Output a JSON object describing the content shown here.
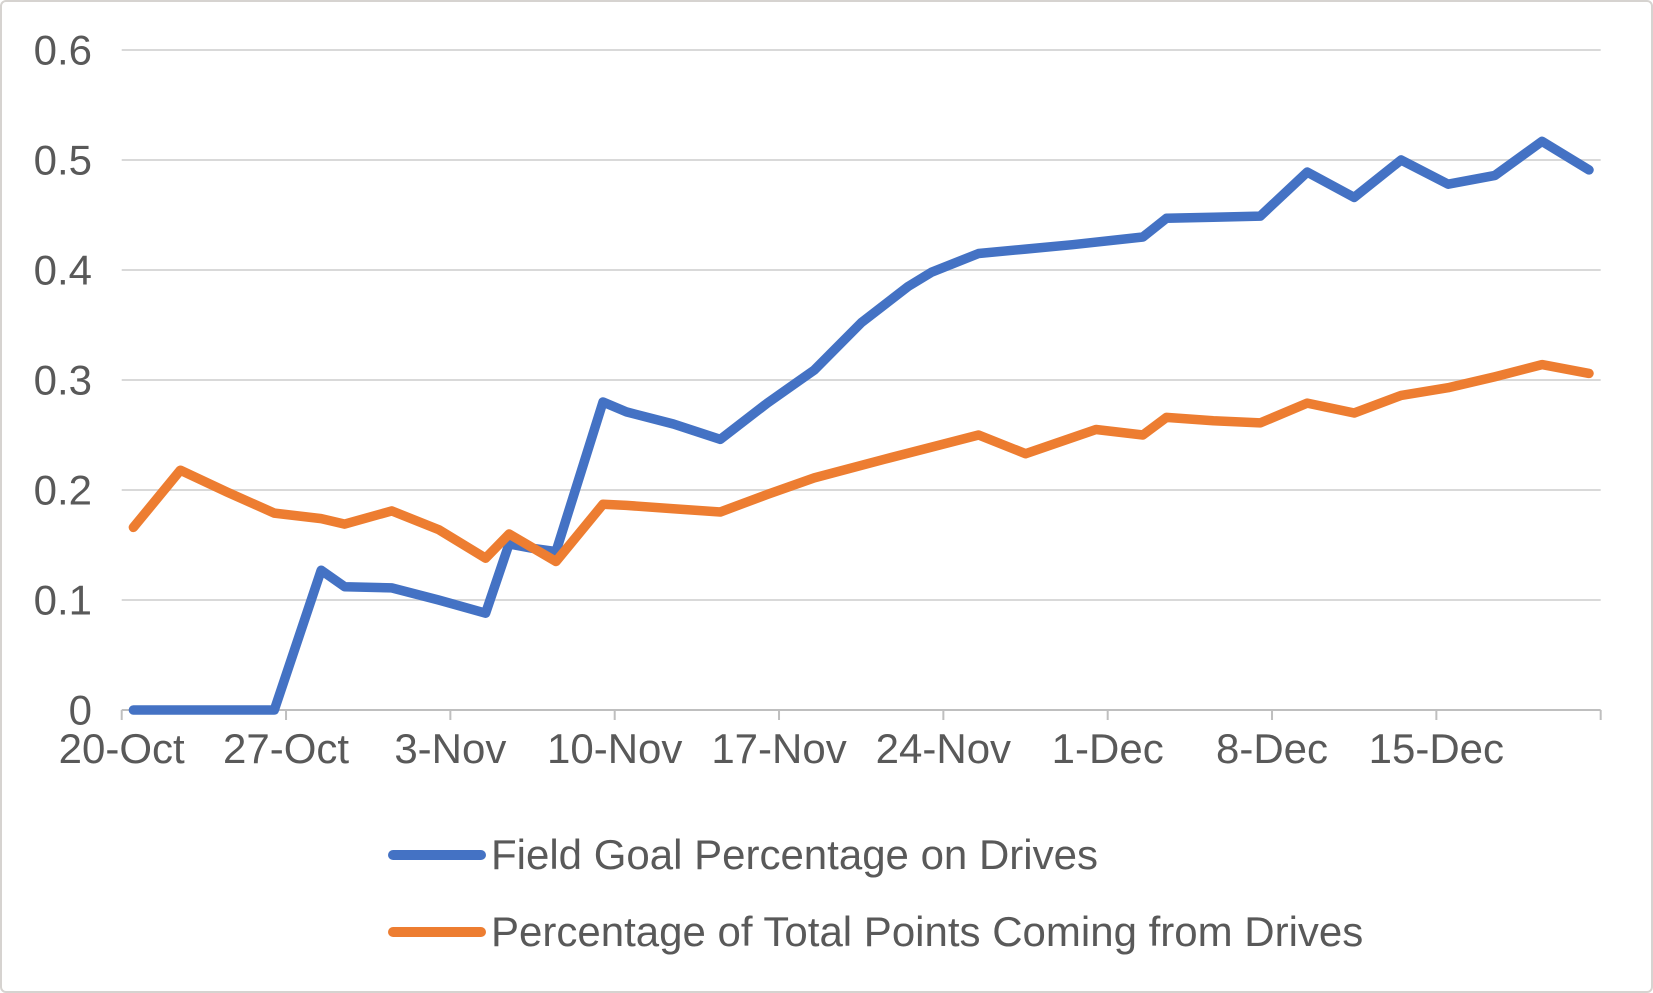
{
  "chart_data": {
    "type": "line",
    "title": "",
    "x_axis": {
      "unit": "days since 20-Oct (date axis)",
      "tick_labels": [
        "20-Oct",
        "27-Oct",
        "3-Nov",
        "10-Nov",
        "17-Nov",
        "24-Nov",
        "1-Dec",
        "8-Dec",
        "15-Dec"
      ],
      "tick_day_positions": [
        0,
        7,
        14,
        21,
        28,
        35,
        42,
        49,
        56
      ],
      "unlabeled_end_tick_day": 63,
      "range_days": [
        0,
        63
      ]
    },
    "y_axis": {
      "range": [
        0,
        0.6
      ],
      "gridlines": true,
      "ticks": [
        {
          "label": "0",
          "value": 0
        },
        {
          "label": "0.1",
          "value": 0.1
        },
        {
          "label": "0.2",
          "value": 0.2
        },
        {
          "label": "0.3",
          "value": 0.3
        },
        {
          "label": "0.4",
          "value": 0.4
        },
        {
          "label": "0.5",
          "value": 0.5
        },
        {
          "label": "0.6",
          "value": 0.6
        }
      ]
    },
    "legend_position": "bottom-left",
    "series": [
      {
        "name": "Field Goal Percentage on Drives",
        "color": "#4472C4",
        "points": [
          [
            0,
            0.0
          ],
          [
            6,
            0.0
          ],
          [
            8,
            0.127
          ],
          [
            9,
            0.112
          ],
          [
            11,
            0.111
          ],
          [
            13,
            0.1
          ],
          [
            15,
            0.088
          ],
          [
            16,
            0.151
          ],
          [
            17,
            0.147
          ],
          [
            18,
            0.144
          ],
          [
            20,
            0.28
          ],
          [
            21,
            0.271
          ],
          [
            23,
            0.26
          ],
          [
            25,
            0.246
          ],
          [
            27,
            0.279
          ],
          [
            29,
            0.309
          ],
          [
            31,
            0.352
          ],
          [
            33,
            0.385
          ],
          [
            34,
            0.398
          ],
          [
            36,
            0.415
          ],
          [
            38,
            0.419
          ],
          [
            40,
            0.423
          ],
          [
            43,
            0.43
          ],
          [
            44,
            0.447
          ],
          [
            46,
            0.448
          ],
          [
            48,
            0.449
          ],
          [
            50,
            0.489
          ],
          [
            52,
            0.466
          ],
          [
            54,
            0.5
          ],
          [
            56,
            0.478
          ],
          [
            58,
            0.486
          ],
          [
            60,
            0.517
          ],
          [
            62,
            0.491
          ]
        ]
      },
      {
        "name": "Percentage of Total Points Coming from Drives",
        "color": "#ED7D31",
        "points": [
          [
            0,
            0.166
          ],
          [
            2,
            0.218
          ],
          [
            4,
            0.198
          ],
          [
            6,
            0.179
          ],
          [
            8,
            0.174
          ],
          [
            9,
            0.169
          ],
          [
            11,
            0.181
          ],
          [
            13,
            0.164
          ],
          [
            15,
            0.138
          ],
          [
            16,
            0.16
          ],
          [
            18,
            0.135
          ],
          [
            20,
            0.187
          ],
          [
            21,
            0.186
          ],
          [
            23,
            0.183
          ],
          [
            25,
            0.18
          ],
          [
            27,
            0.196
          ],
          [
            29,
            0.211
          ],
          [
            32,
            0.228
          ],
          [
            34,
            0.239
          ],
          [
            36,
            0.25
          ],
          [
            38,
            0.233
          ],
          [
            41,
            0.255
          ],
          [
            43,
            0.25
          ],
          [
            44,
            0.266
          ],
          [
            46,
            0.263
          ],
          [
            48,
            0.261
          ],
          [
            50,
            0.279
          ],
          [
            52,
            0.27
          ],
          [
            54,
            0.286
          ],
          [
            56,
            0.293
          ],
          [
            58,
            0.303
          ],
          [
            60,
            0.314
          ],
          [
            62,
            0.306
          ]
        ]
      }
    ],
    "colors": {
      "axis_text": "#595959",
      "gridline": "#D9D9D9",
      "axis_line": "#BFBFBF",
      "background": "#FFFFFF"
    }
  }
}
